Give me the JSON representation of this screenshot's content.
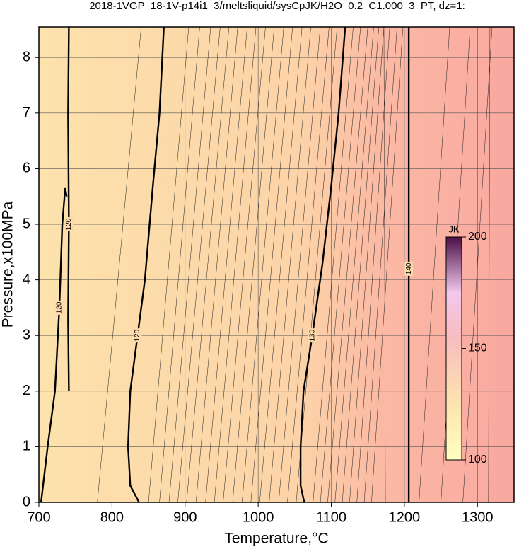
{
  "chart_data": {
    "type": "contour",
    "title": "2018-1VGP_18-1V-p14i1_3/meltsliquid/sysCpJK/H2O_0.2_C1.000_3_PT, dz=1:",
    "x_label": "Temperature,°C",
    "y_label": "Pressure,x100MPa",
    "xlim": [
      700,
      1350
    ],
    "ylim": [
      0,
      8.55
    ],
    "xticks": [
      700,
      800,
      900,
      1000,
      1100,
      1200,
      1300
    ],
    "yticks": [
      0,
      1,
      2,
      3,
      4,
      5,
      6,
      7,
      8
    ],
    "grid": true,
    "contours": [
      {
        "level": 120,
        "x": [
          703,
          712,
          722,
          728,
          732,
          736,
          738
        ],
        "y": [
          0,
          1,
          2,
          3.5,
          5,
          5.65,
          5.5
        ]
      },
      {
        "level": 120,
        "x": [
          741,
          740,
          741,
          740,
          741
        ],
        "y": [
          2,
          3.3,
          5,
          7,
          8.55
        ]
      },
      {
        "level": 120,
        "x": [
          837,
          825,
          822,
          825,
          835,
          845,
          856,
          865,
          871
        ],
        "y": [
          0,
          0.3,
          1,
          2,
          3,
          4,
          5.7,
          7,
          8.55
        ]
      },
      {
        "level": 130,
        "x": [
          1063,
          1058,
          1058,
          1062,
          1074,
          1088,
          1100,
          1110,
          1119
        ],
        "y": [
          0,
          0.3,
          1,
          2,
          3,
          4.3,
          5.7,
          7,
          8.55
        ]
      },
      {
        "level": 140,
        "x": [
          1206,
          1206,
          1206
        ],
        "y": [
          0,
          4.2,
          8.55
        ]
      }
    ],
    "thin_contours": [
      {
        "x": [
          780,
          840
        ]
      },
      {
        "x": [
          850,
          905
        ]
      },
      {
        "x": [
          865,
          920
        ]
      },
      {
        "x": [
          878,
          935
        ]
      },
      {
        "x": [
          890,
          948
        ]
      },
      {
        "x": [
          902,
          960
        ]
      },
      {
        "x": [
          915,
          972
        ]
      },
      {
        "x": [
          928,
          985
        ]
      },
      {
        "x": [
          940,
          997
        ]
      },
      {
        "x": [
          952,
          1010
        ]
      },
      {
        "x": [
          965,
          1022
        ]
      },
      {
        "x": [
          978,
          1035
        ]
      },
      {
        "x": [
          990,
          1047
        ]
      },
      {
        "x": [
          1002,
          1060
        ]
      },
      {
        "x": [
          1015,
          1072
        ]
      },
      {
        "x": [
          1028,
          1085
        ]
      },
      {
        "x": [
          1040,
          1097
        ]
      },
      {
        "x": [
          1052,
          1108
        ]
      },
      {
        "x": [
          1075,
          1130
        ]
      },
      {
        "x": [
          1085,
          1140
        ]
      },
      {
        "x": [
          1095,
          1150
        ]
      },
      {
        "x": [
          1105,
          1158
        ]
      },
      {
        "x": [
          1115,
          1165
        ]
      },
      {
        "x": [
          1125,
          1172
        ]
      },
      {
        "x": [
          1135,
          1180
        ]
      },
      {
        "x": [
          1145,
          1190
        ]
      },
      {
        "x": [
          1155,
          1198
        ]
      },
      {
        "x": [
          1174,
          1172
        ]
      },
      {
        "x": [
          1220,
          1262
        ]
      },
      {
        "x": [
          1250,
          1290
        ]
      },
      {
        "x": [
          1280,
          1320
        ]
      },
      {
        "x": [
          1315,
          1317
        ]
      }
    ],
    "colorbar": {
      "label": "JK",
      "lim": [
        100,
        200
      ],
      "ticks": [
        100,
        150,
        200
      ]
    }
  }
}
